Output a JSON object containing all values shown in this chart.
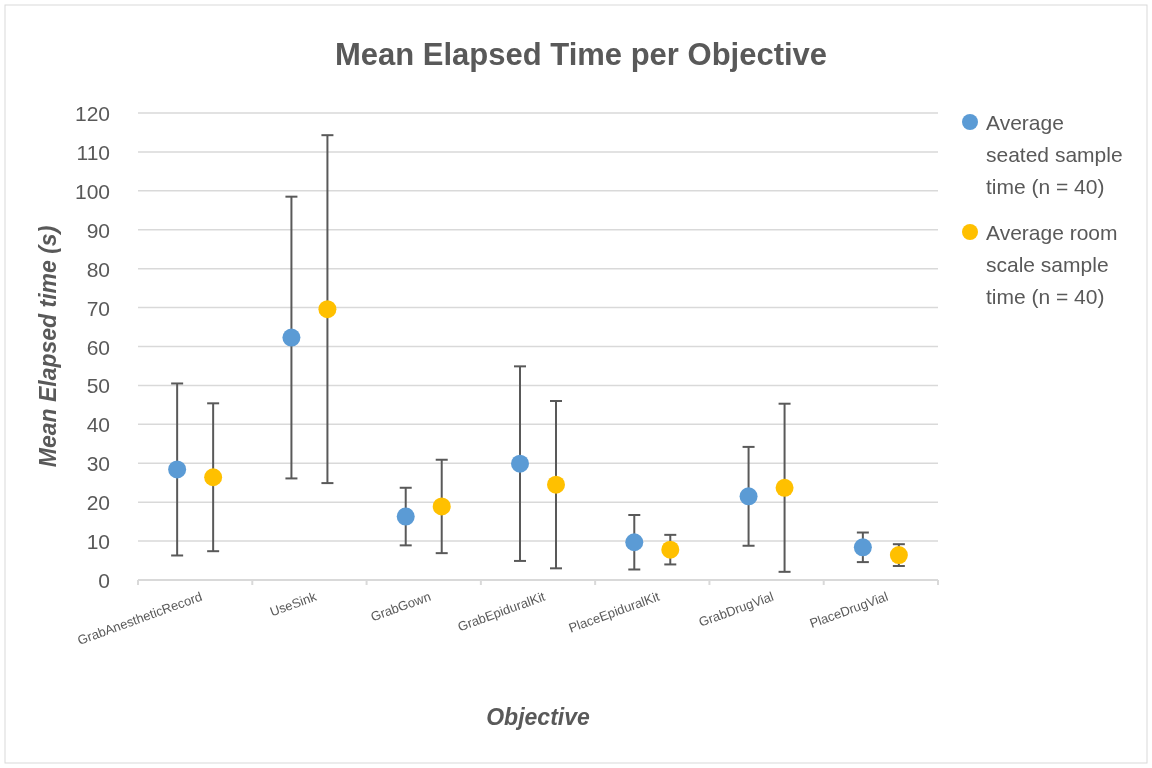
{
  "chart_data": {
    "type": "scatter",
    "title": "Mean Elapsed Time per Objective",
    "xlabel": "Objective",
    "ylabel": "Mean Elapsed time (s)",
    "categories": [
      "GrabAnestheticRecord",
      "UseSink",
      "GrabGown",
      "GrabEpiduralKit",
      "PlaceEpiduralKit",
      "GrabDrugVial",
      "PlaceDrugVial"
    ],
    "series": [
      {
        "name": "Average seated sample time (n = 40)",
        "color": "#5b9bd5",
        "values": [
          28.4,
          62.3,
          16.3,
          29.9,
          9.7,
          21.5,
          8.4
        ],
        "errors": [
          22.1,
          36.2,
          7.4,
          25,
          7,
          12.7,
          3.8
        ]
      },
      {
        "name": "Average room scale sample time (n = 40)",
        "color": "#ffc000",
        "values": [
          26.4,
          69.6,
          18.9,
          24.5,
          7.8,
          23.7,
          6.4
        ],
        "errors": [
          19,
          44.7,
          12,
          21.5,
          3.8,
          21.6,
          2.8
        ]
      }
    ],
    "ylim": [
      0,
      120
    ],
    "yticks": [
      0,
      10,
      20,
      30,
      40,
      50,
      60,
      70,
      80,
      90,
      100,
      110,
      120
    ],
    "grid": "y",
    "legend": "right",
    "marker": "circle"
  }
}
